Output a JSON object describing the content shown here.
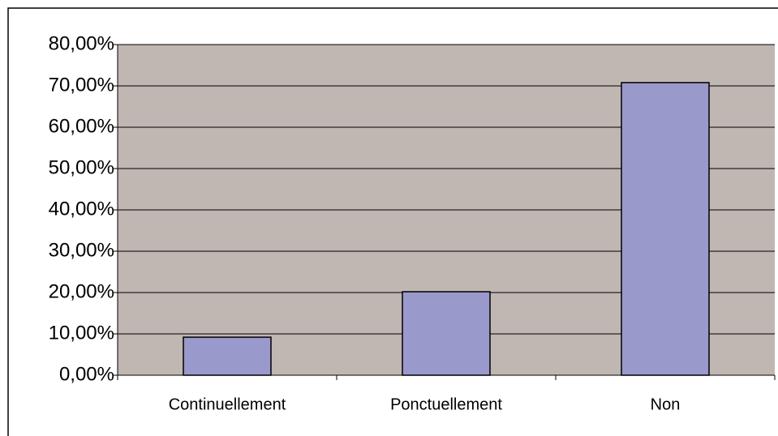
{
  "chart_data": {
    "type": "bar",
    "categories": [
      "Continuellement",
      "Ponctuellement",
      "Non"
    ],
    "values": [
      9.2,
      20.2,
      70.8
    ],
    "color": "#9999cc",
    "ylim": [
      0,
      80
    ],
    "yticks": [
      {
        "value": 0,
        "label": "0,00%"
      },
      {
        "value": 10,
        "label": "10,00%"
      },
      {
        "value": 20,
        "label": "20,00%"
      },
      {
        "value": 30,
        "label": "30,00%"
      },
      {
        "value": 40,
        "label": "40,00%"
      },
      {
        "value": 50,
        "label": "50,00%"
      },
      {
        "value": 60,
        "label": "60,00%"
      },
      {
        "value": 70,
        "label": "70,00%"
      },
      {
        "value": 80,
        "label": "80,00%"
      }
    ],
    "grid": true
  }
}
